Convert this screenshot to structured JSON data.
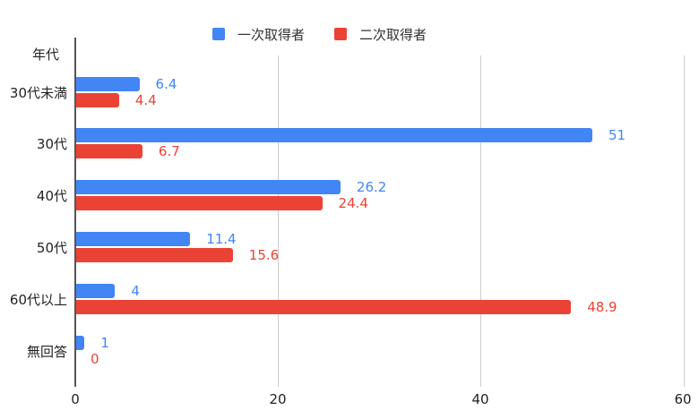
{
  "chart_data": {
    "type": "bar",
    "orientation": "horizontal",
    "title": "",
    "ylabel": "年代",
    "xlabel": "",
    "categories": [
      "30代未満",
      "30代",
      "40代",
      "50代",
      "60代以上",
      "無回答"
    ],
    "series": [
      {
        "name": "一次取得者",
        "color": "#4285F4",
        "values": [
          6.4,
          51,
          26.2,
          11.4,
          4,
          1
        ],
        "labels": [
          "6.4",
          "51",
          "26.2",
          "11.4",
          "4",
          "1"
        ]
      },
      {
        "name": "二次取得者",
        "color": "#EA4335",
        "values": [
          4.4,
          6.7,
          24.4,
          15.6,
          48.9,
          0
        ],
        "labels": [
          "4.4",
          "6.7",
          "24.4",
          "15.6",
          "48.9",
          "0"
        ]
      }
    ],
    "xlim": [
      0,
      60
    ],
    "xticks": [
      "0",
      "20",
      "40",
      "60"
    ],
    "grid": true,
    "legend_position": "top"
  }
}
